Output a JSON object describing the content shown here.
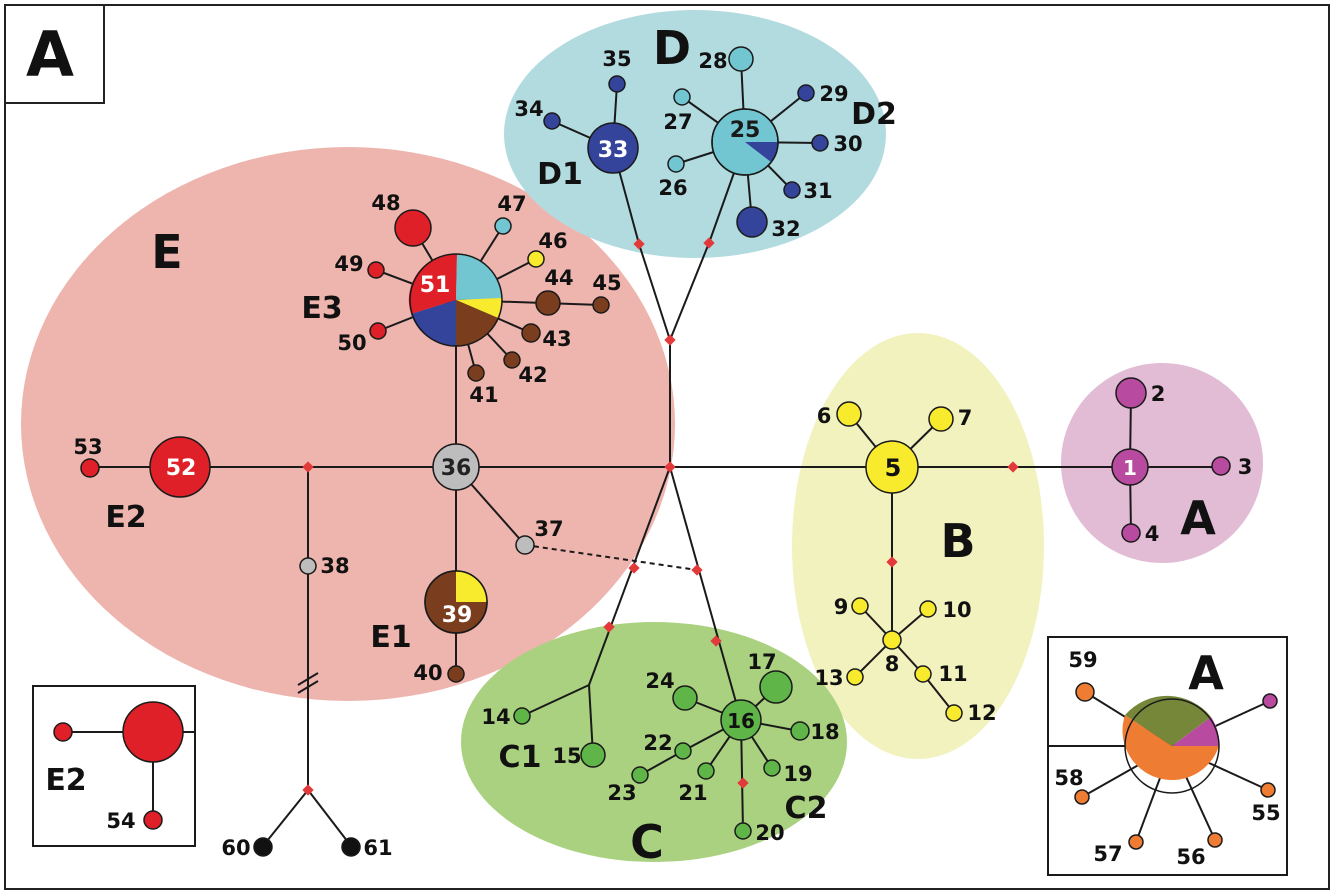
{
  "panel_label": "A",
  "colors": {
    "A": "#b84aa0",
    "B": "#f8ea2c",
    "C": "#5fb548",
    "D_light": "#72c6d2",
    "D_dark": "#34449a",
    "E_red": "#e02028",
    "E_brown": "#7a3e1e",
    "gray": "#bdbdbd",
    "black": "#111111",
    "orange": "#ee7d33",
    "olive": "#77873a",
    "median": "#e23a3a",
    "bg_A": "#e2bcd5",
    "bg_B": "#f1f2be",
    "bg_C": "#a9d17f",
    "bg_D": "#b2dbe0",
    "bg_E": "#eeb4ae"
  },
  "groups": [
    {
      "id": "A",
      "label": "A"
    },
    {
      "id": "B",
      "label": "B"
    },
    {
      "id": "C",
      "label": "C"
    },
    {
      "id": "D",
      "label": "D"
    },
    {
      "id": "E",
      "label": "E"
    }
  ],
  "subgroups": [
    "C1",
    "C2",
    "D1",
    "D2",
    "E1",
    "E2",
    "E3"
  ],
  "haplotypes": [
    {
      "id": "1"
    },
    {
      "id": "2"
    },
    {
      "id": "3"
    },
    {
      "id": "4"
    },
    {
      "id": "5"
    },
    {
      "id": "6"
    },
    {
      "id": "7"
    },
    {
      "id": "8"
    },
    {
      "id": "9"
    },
    {
      "id": "10"
    },
    {
      "id": "11"
    },
    {
      "id": "12"
    },
    {
      "id": "13"
    },
    {
      "id": "14"
    },
    {
      "id": "15"
    },
    {
      "id": "16"
    },
    {
      "id": "17"
    },
    {
      "id": "18"
    },
    {
      "id": "19"
    },
    {
      "id": "20"
    },
    {
      "id": "21"
    },
    {
      "id": "22"
    },
    {
      "id": "23"
    },
    {
      "id": "24"
    },
    {
      "id": "25"
    },
    {
      "id": "26"
    },
    {
      "id": "27"
    },
    {
      "id": "28"
    },
    {
      "id": "29"
    },
    {
      "id": "30"
    },
    {
      "id": "31"
    },
    {
      "id": "32"
    },
    {
      "id": "33"
    },
    {
      "id": "34"
    },
    {
      "id": "35"
    },
    {
      "id": "36"
    },
    {
      "id": "37"
    },
    {
      "id": "38"
    },
    {
      "id": "39"
    },
    {
      "id": "40"
    },
    {
      "id": "41"
    },
    {
      "id": "42"
    },
    {
      "id": "43"
    },
    {
      "id": "44"
    },
    {
      "id": "45"
    },
    {
      "id": "46"
    },
    {
      "id": "47"
    },
    {
      "id": "48"
    },
    {
      "id": "49"
    },
    {
      "id": "50"
    },
    {
      "id": "51"
    },
    {
      "id": "52"
    },
    {
      "id": "53"
    },
    {
      "id": "54"
    },
    {
      "id": "55"
    },
    {
      "id": "56"
    },
    {
      "id": "57"
    },
    {
      "id": "58"
    },
    {
      "id": "59"
    },
    {
      "id": "60"
    },
    {
      "id": "61"
    }
  ],
  "inset_E2": {
    "subgroup": "E2",
    "haplotypes": [
      "54"
    ]
  },
  "inset_A": {
    "group": "A",
    "haplotypes": [
      "55",
      "56",
      "57",
      "58",
      "59"
    ]
  }
}
